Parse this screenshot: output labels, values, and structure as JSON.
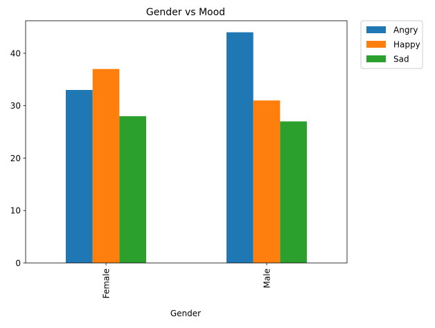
{
  "chart_data": {
    "type": "bar",
    "title": "Gender vs Mood",
    "xlabel": "Gender",
    "ylabel": "",
    "categories": [
      "Female",
      "Male"
    ],
    "series": [
      {
        "name": "Angry",
        "values": [
          33,
          44
        ],
        "color": "#1f77b4"
      },
      {
        "name": "Happy",
        "values": [
          37,
          31
        ],
        "color": "#ff7f0e"
      },
      {
        "name": "Sad",
        "values": [
          28,
          27
        ],
        "color": "#2ca02c"
      }
    ],
    "ylim": [
      0,
      46.2
    ],
    "yticks": [
      0,
      10,
      20,
      30,
      40
    ],
    "grid": false,
    "legend_position": "outside-top-right"
  }
}
